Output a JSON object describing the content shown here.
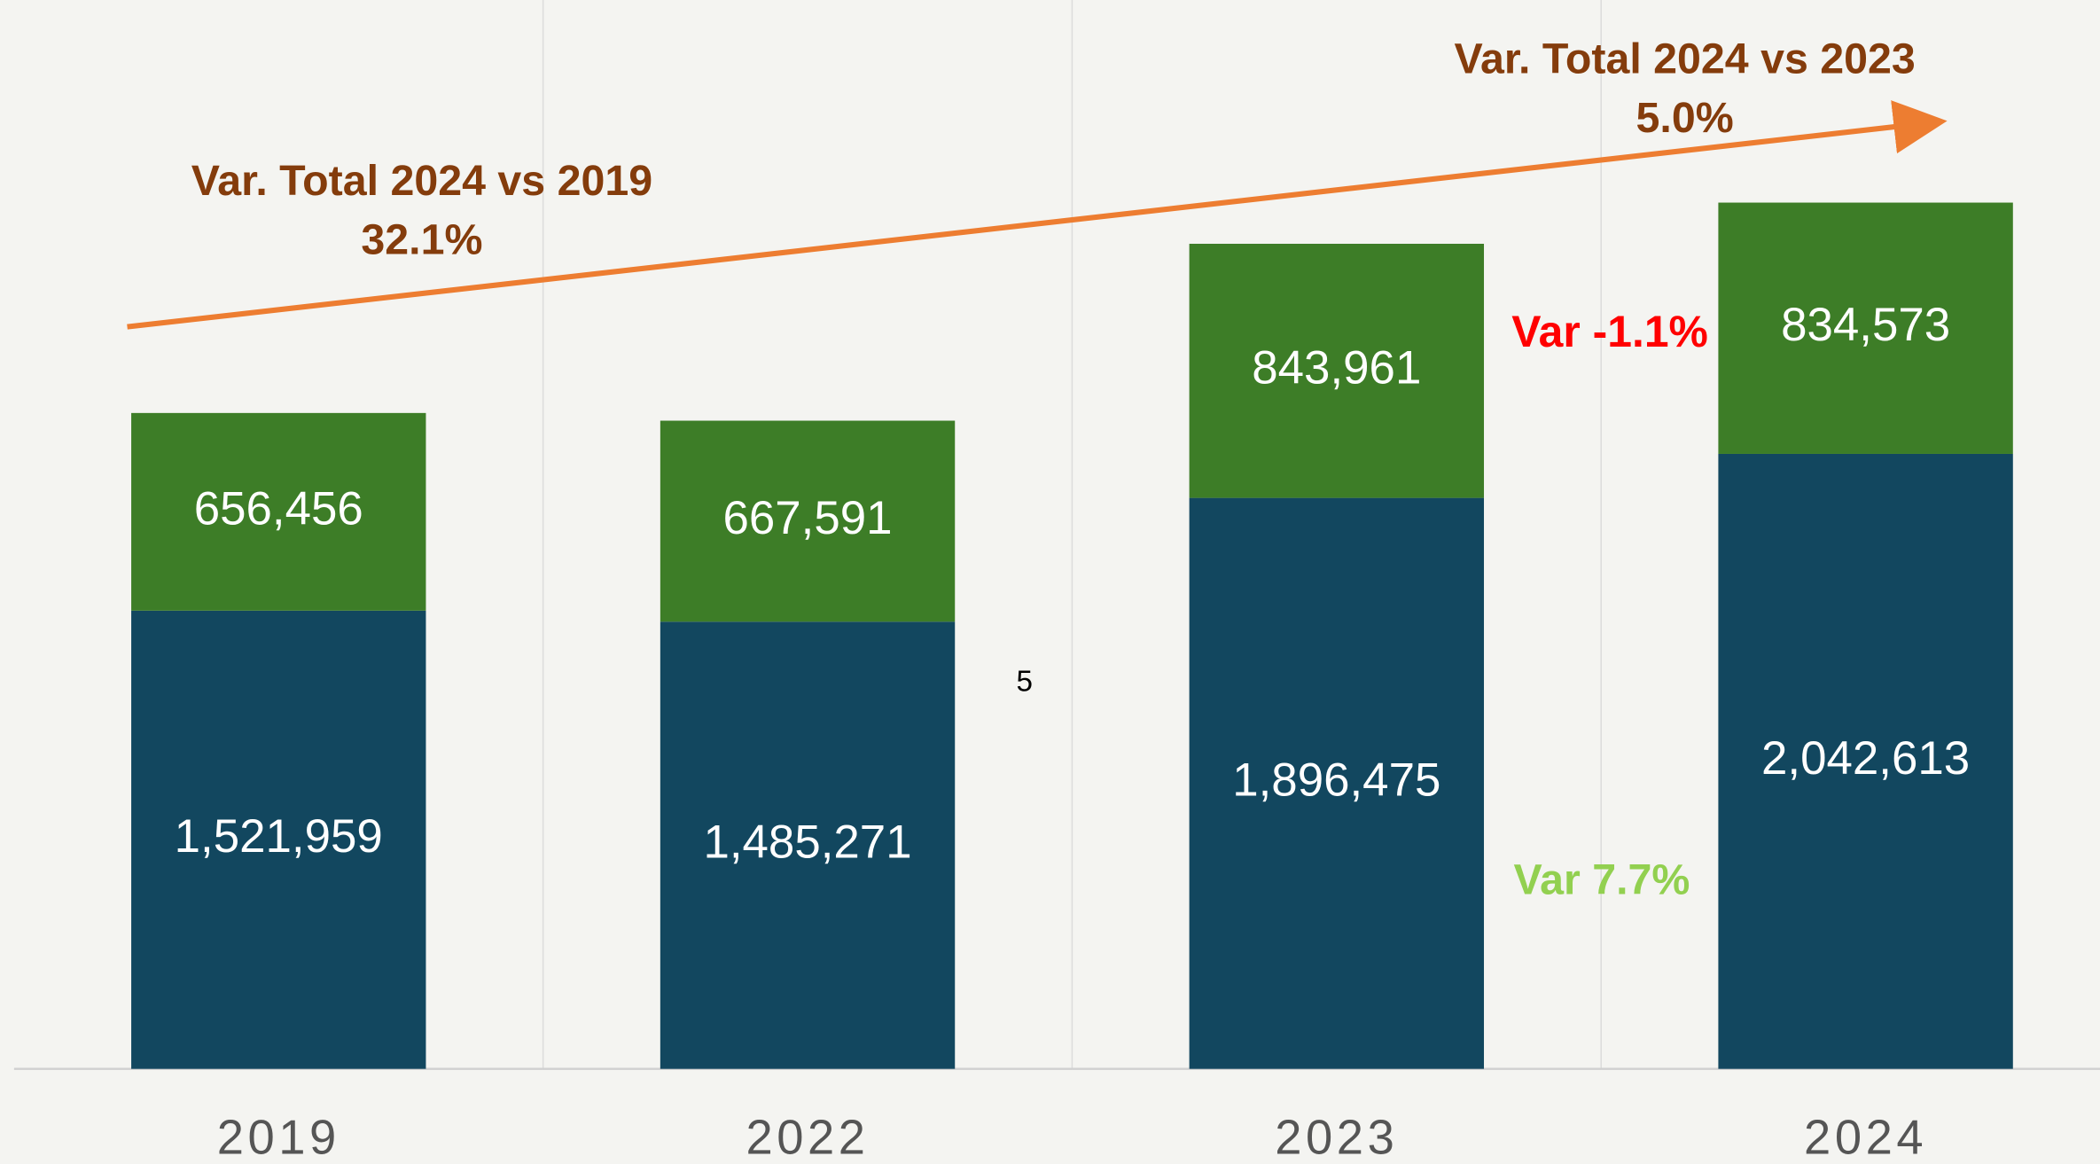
{
  "chart_data": {
    "type": "stacked_bar",
    "categories": [
      "2019",
      "2022",
      "2023",
      "2024"
    ],
    "series": [
      {
        "color": "#12475f",
        "values": [
          1521959,
          1485271,
          1896475,
          2042613
        ],
        "value_labels": [
          "1,521,959",
          "1,485,271",
          "1,896,475",
          "2,042,613"
        ]
      },
      {
        "color": "#3d7d27",
        "values": [
          656456,
          667591,
          843961,
          834573
        ],
        "value_labels": [
          "656,456",
          "667,591",
          "843,961",
          "834,573"
        ]
      }
    ],
    "ylim": [
      0,
      3550000
    ],
    "grid": true,
    "annotations": [
      {
        "text": "Var. Total 2024 vs 2019",
        "color": "#843c0c"
      },
      {
        "text": "32.1%",
        "color": "#843c0c"
      },
      {
        "text": "Var. Total 2024 vs 2023",
        "color": "#843c0c"
      },
      {
        "text": "5.0%",
        "color": "#843c0c"
      },
      {
        "text": "Var -1.1%",
        "color": "#ff0000"
      },
      {
        "text": "Var 7.7%",
        "color": "#92d050"
      },
      {
        "text": "5",
        "color": "#000000"
      }
    ]
  }
}
